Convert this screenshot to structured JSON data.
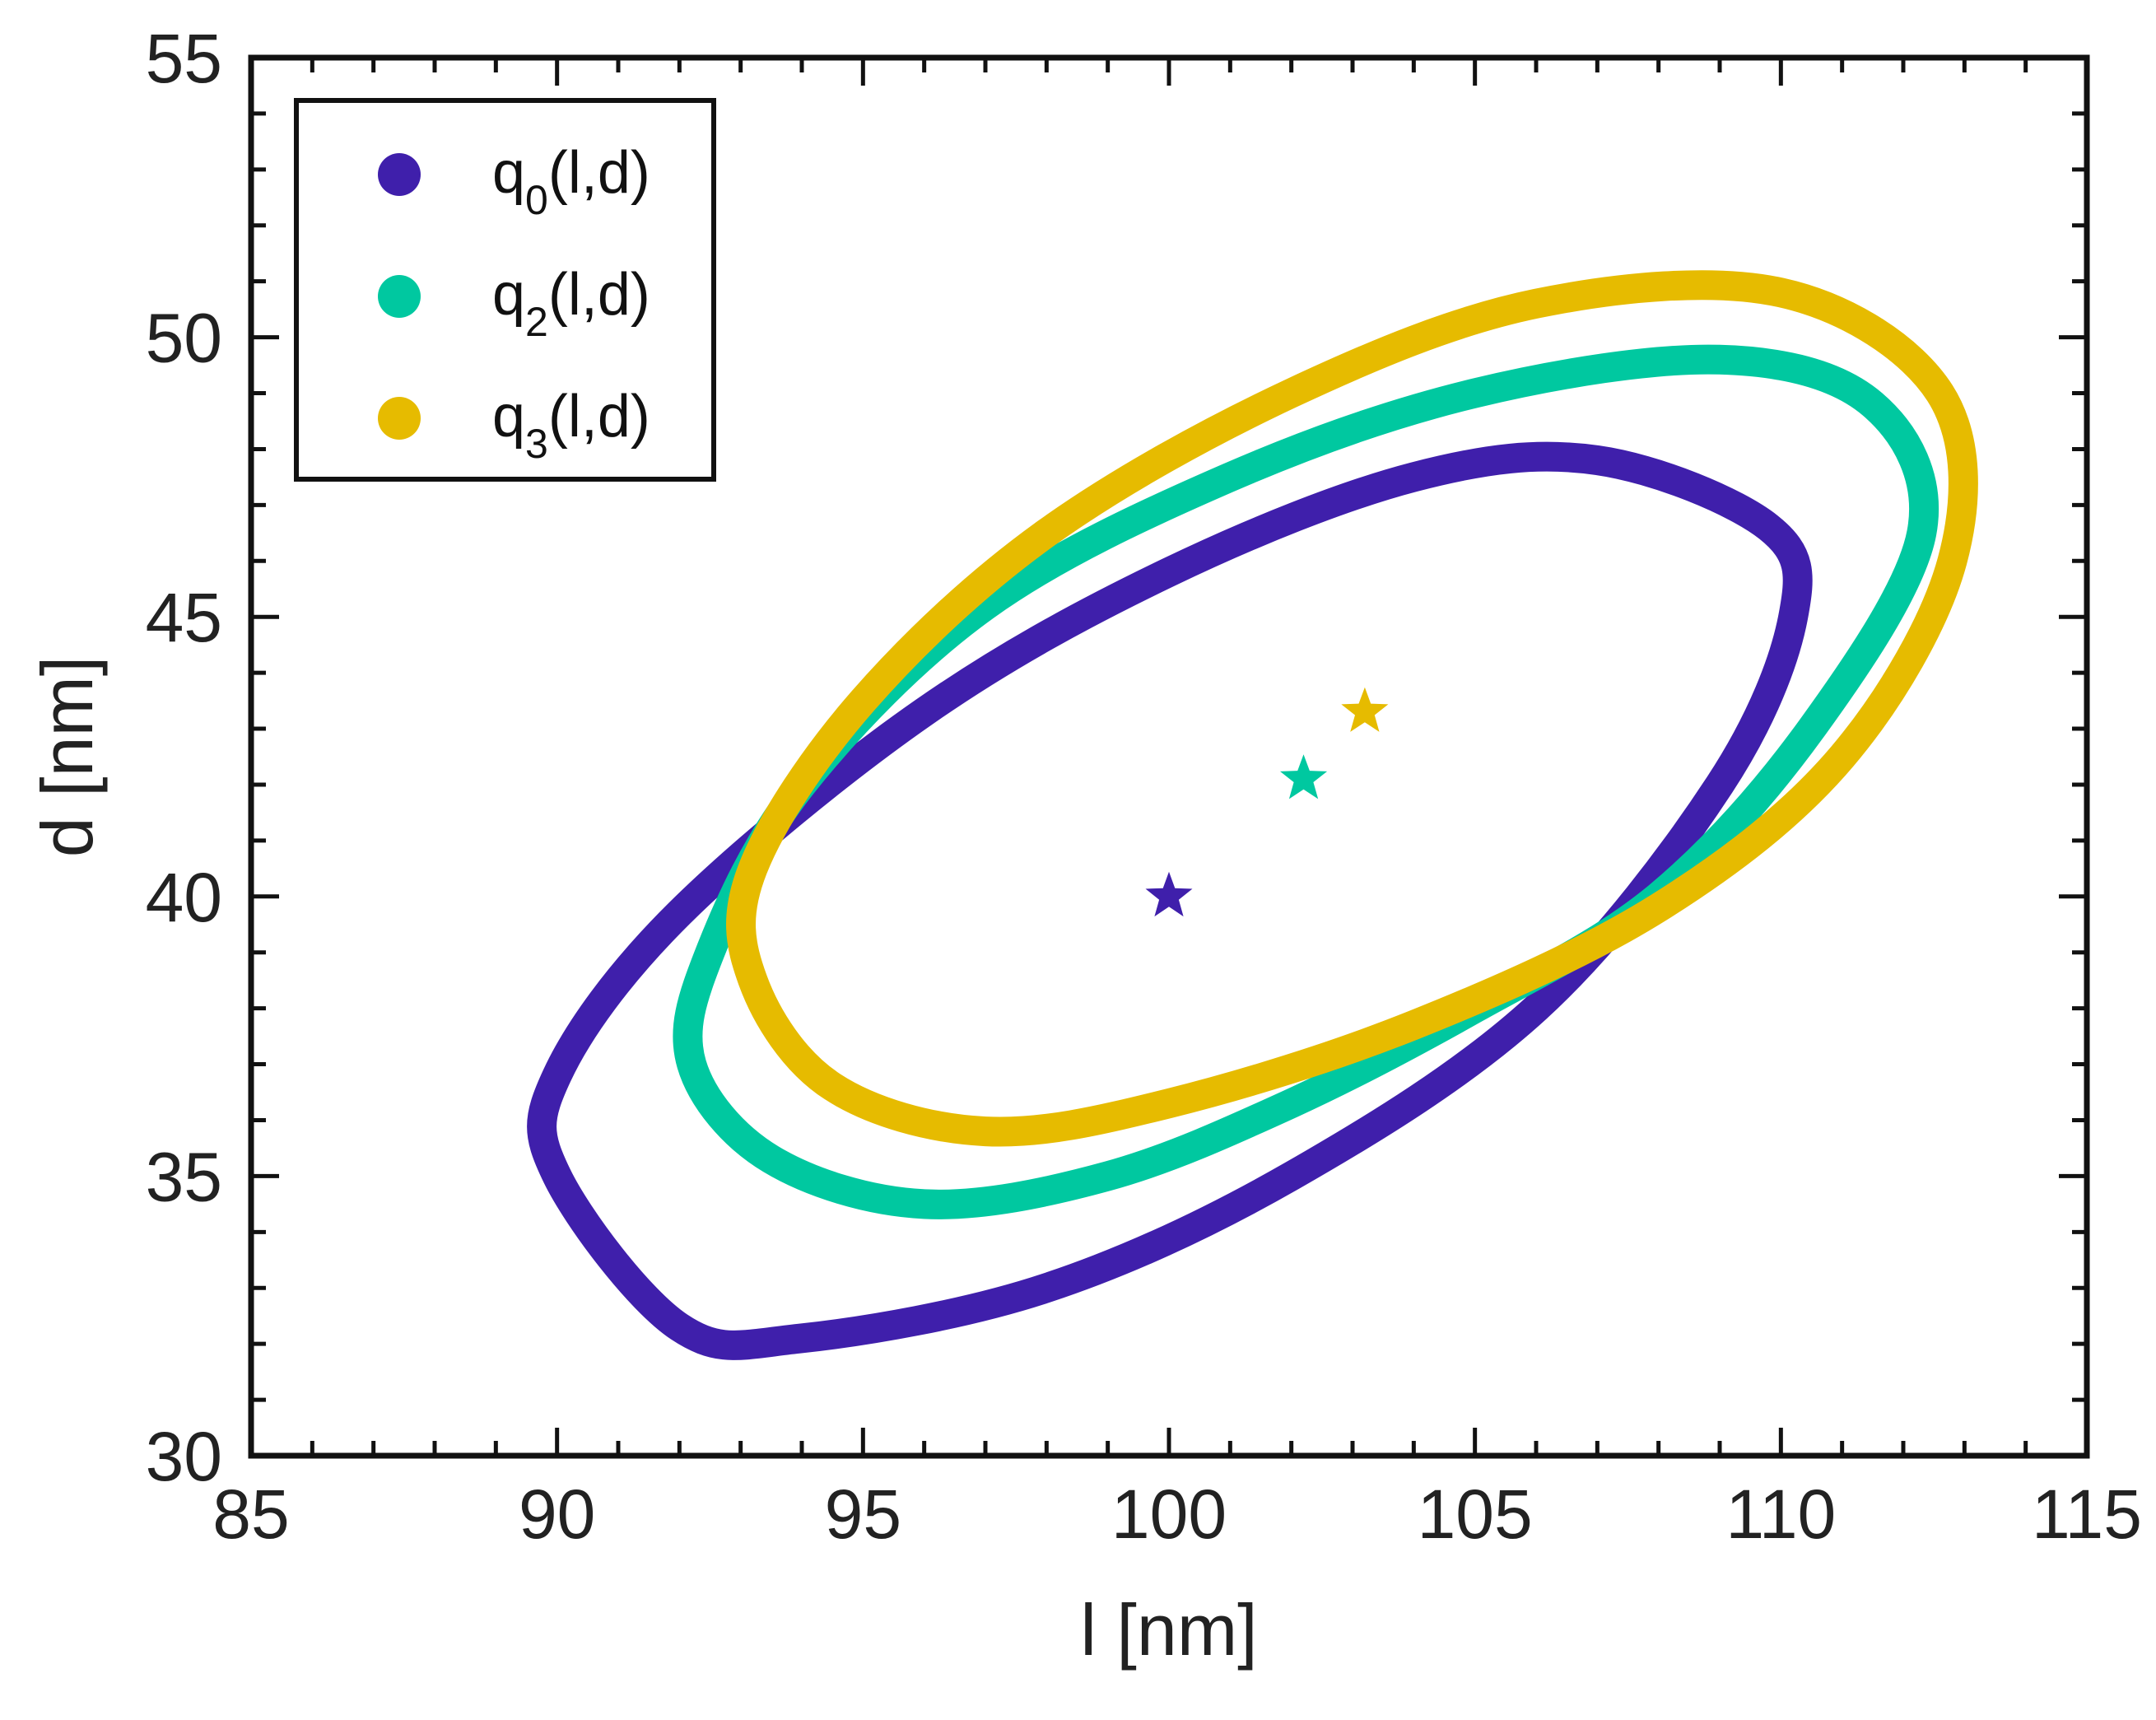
{
  "chart_data": {
    "type": "scatter",
    "title": "",
    "xlabel": "l [nm]",
    "ylabel": "d [nm]",
    "xlim": [
      85,
      115
    ],
    "ylim": [
      30,
      55
    ],
    "xticks": [
      "85",
      "90",
      "95",
      "100",
      "105",
      "110",
      "115"
    ],
    "yticks": [
      "30",
      "35",
      "40",
      "45",
      "50",
      "55"
    ],
    "grid": false,
    "legend_position": "top-left",
    "series": [
      {
        "name": "q0(l,d)",
        "label_main": "q",
        "label_sub": "0",
        "label_tail": "(l,d)",
        "color": "#3f1fab",
        "center": [
          100.0,
          40.0
        ],
        "contour": [
          [
            90.0,
            35.0
          ],
          [
            92.0,
            32.3
          ],
          [
            94.0,
            32.1
          ],
          [
            98.0,
            33.0
          ],
          [
            102.0,
            35.0
          ],
          [
            106.0,
            38.0
          ],
          [
            109.0,
            42.0
          ],
          [
            110.2,
            45.0
          ],
          [
            109.8,
            46.6
          ],
          [
            107.0,
            47.8
          ],
          [
            104.0,
            47.5
          ],
          [
            100.0,
            45.8
          ],
          [
            96.0,
            43.3
          ],
          [
            92.0,
            39.7
          ],
          [
            90.0,
            36.8
          ]
        ]
      },
      {
        "name": "q2(l,d)",
        "label_main": "q",
        "label_sub": "2",
        "label_tail": "(l,d)",
        "color": "#00c8a0",
        "center": [
          102.2,
          42.1
        ],
        "contour": [
          [
            92.2,
            37.0
          ],
          [
            93.5,
            35.3
          ],
          [
            96.0,
            34.5
          ],
          [
            99.0,
            35.0
          ],
          [
            102.0,
            36.3
          ],
          [
            105.0,
            38.0
          ],
          [
            108.0,
            40.0
          ],
          [
            110.5,
            43.0
          ],
          [
            112.3,
            46.5
          ],
          [
            111.5,
            48.8
          ],
          [
            109.0,
            49.6
          ],
          [
            105.0,
            49.0
          ],
          [
            101.0,
            47.5
          ],
          [
            97.0,
            45.2
          ],
          [
            94.0,
            42.0
          ],
          [
            92.5,
            39.0
          ]
        ]
      },
      {
        "name": "q3(l,d)",
        "label_main": "q",
        "label_sub": "3",
        "label_tail": "(l,d)",
        "color": "#e6bb00",
        "center": [
          103.2,
          43.3
        ],
        "contour": [
          [
            93.2,
            38.5
          ],
          [
            94.5,
            36.6
          ],
          [
            97.0,
            35.8
          ],
          [
            100.0,
            36.3
          ],
          [
            104.0,
            37.7
          ],
          [
            108.0,
            39.8
          ],
          [
            111.0,
            42.5
          ],
          [
            112.8,
            46.0
          ],
          [
            112.6,
            49.0
          ],
          [
            110.0,
            50.8
          ],
          [
            106.0,
            50.6
          ],
          [
            102.0,
            49.0
          ],
          [
            98.0,
            46.5
          ],
          [
            95.0,
            43.5
          ],
          [
            93.2,
            40.5
          ]
        ]
      }
    ]
  }
}
